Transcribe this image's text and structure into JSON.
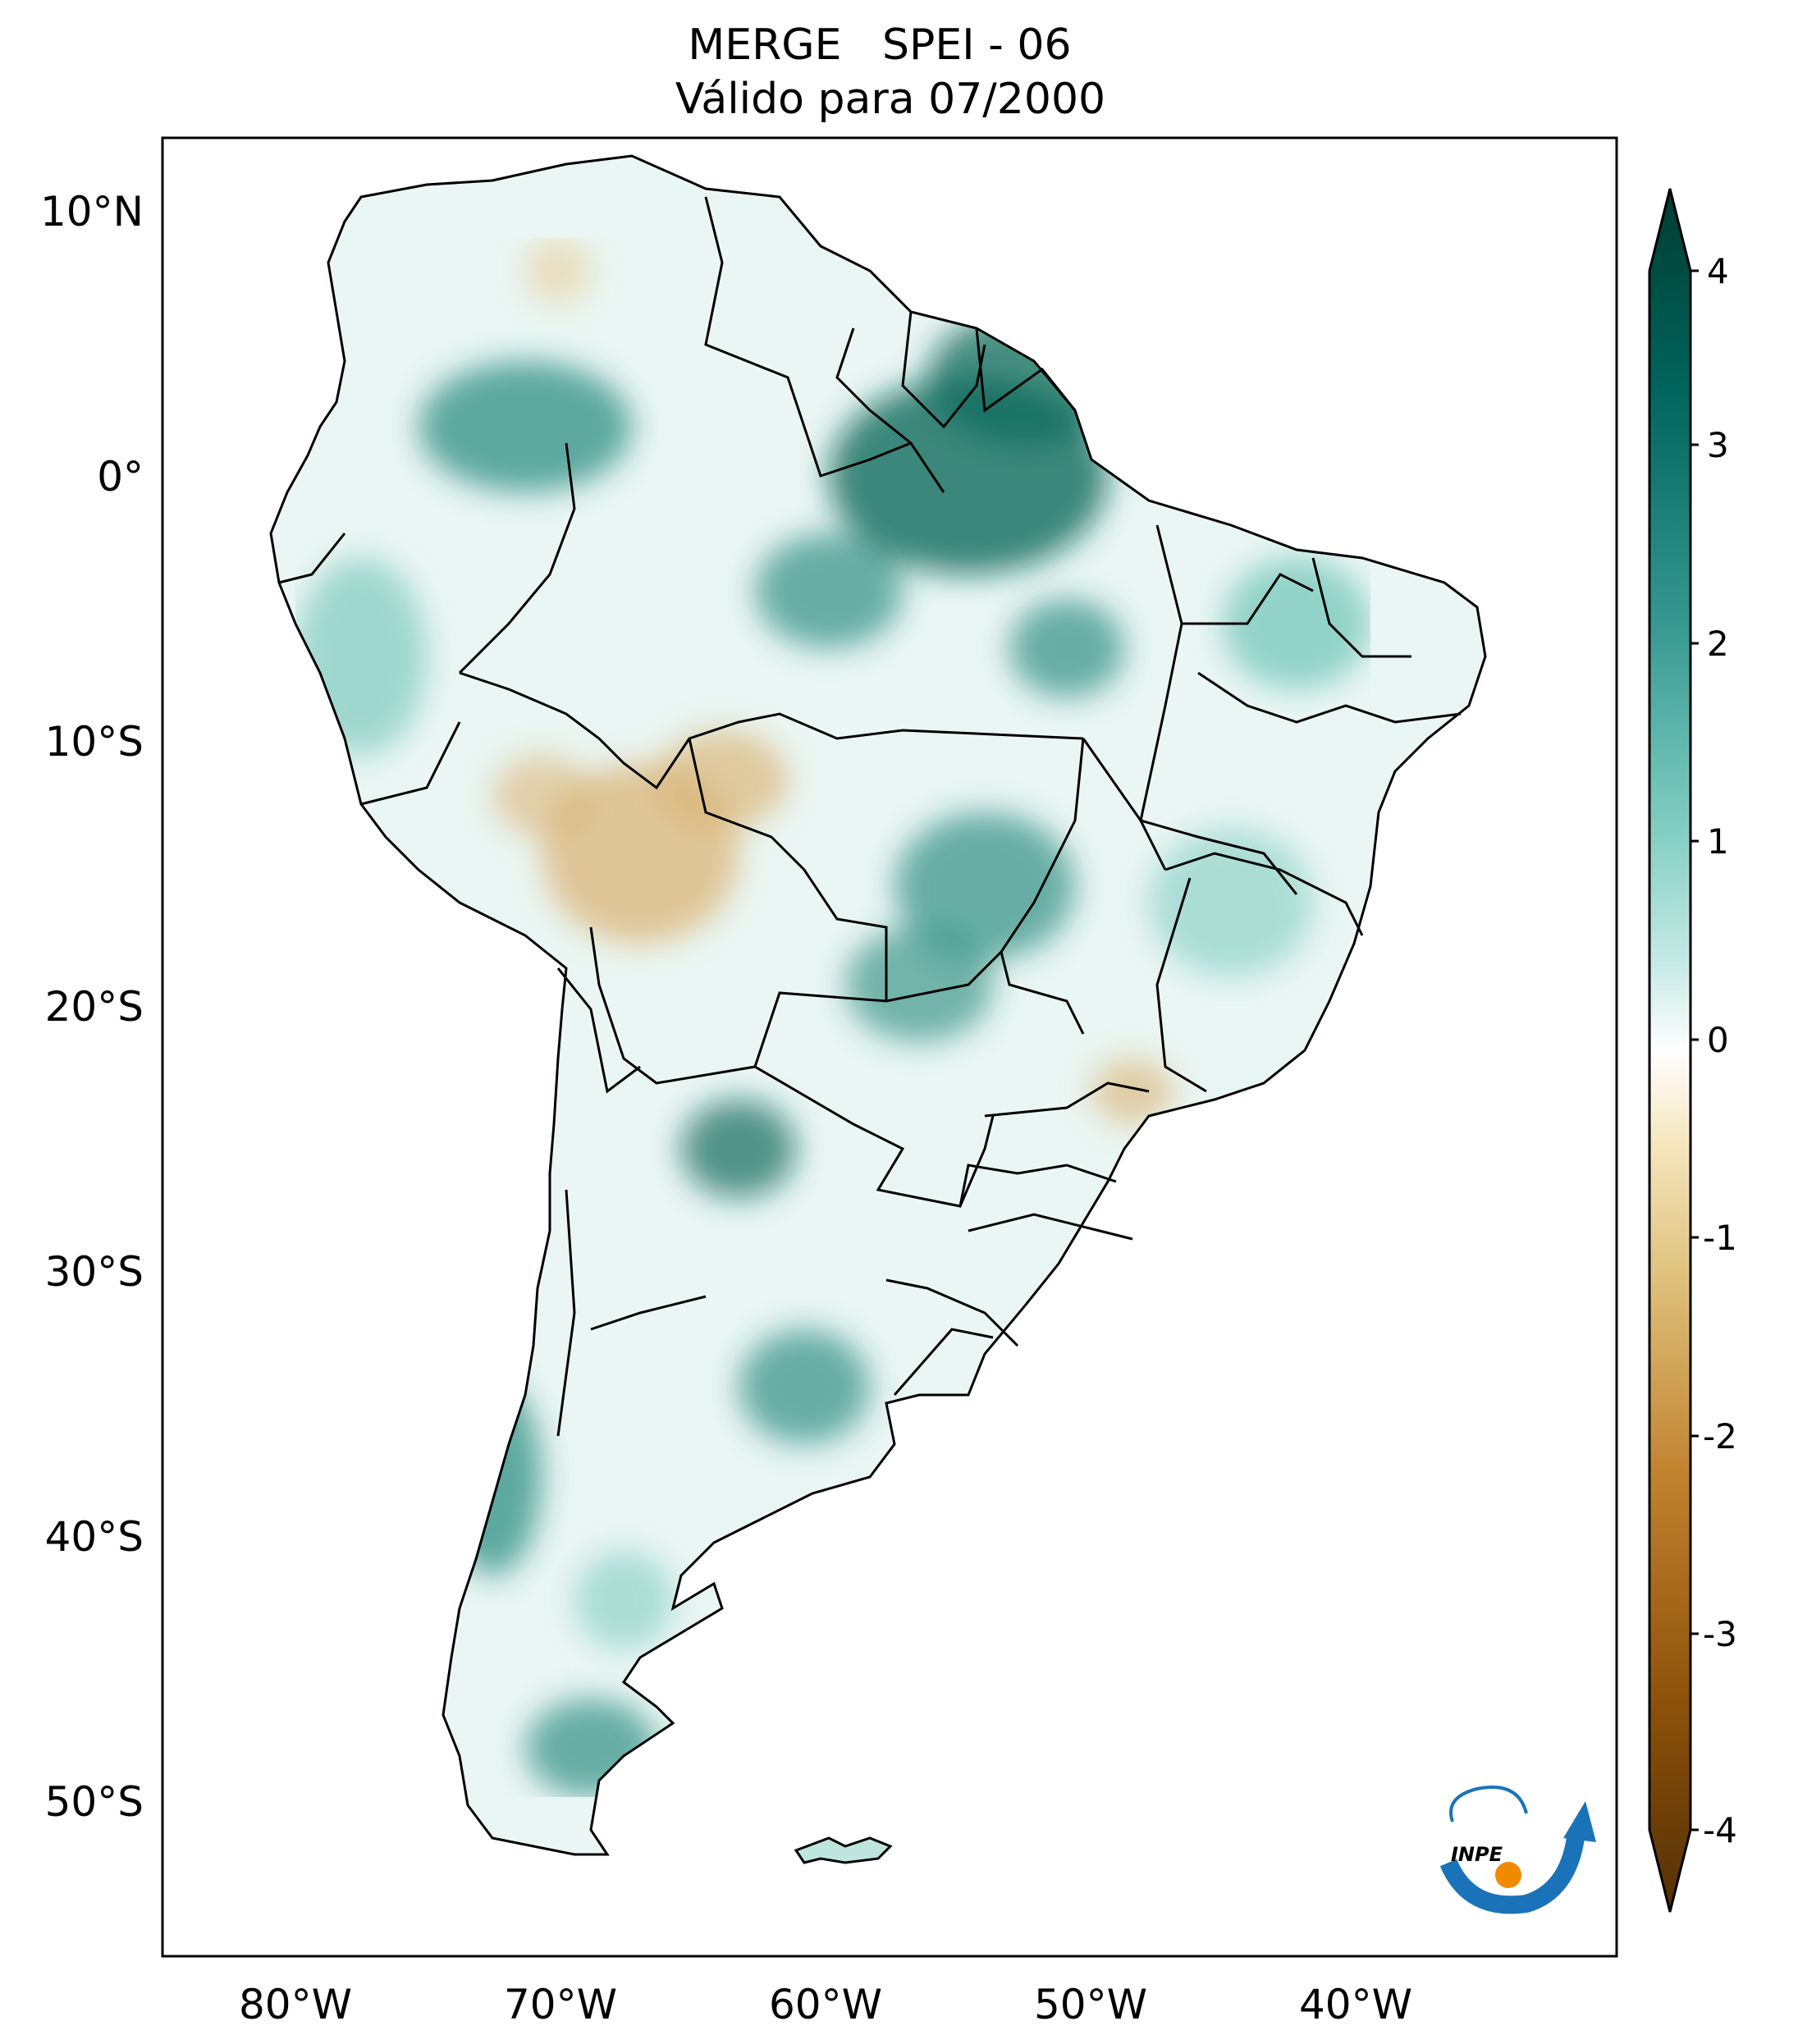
{
  "title": {
    "line1": "MERGE   SPEI - 06",
    "line2": "Válido para 07/2000"
  },
  "map": {
    "lat_labels": [
      "10°N",
      "0°",
      "10°S",
      "20°S",
      "30°S",
      "40°S",
      "50°S"
    ],
    "lon_labels": [
      "80°W",
      "70°W",
      "60°W",
      "50°W",
      "40°W"
    ]
  },
  "colorbar": {
    "ticks": [
      "4",
      "3",
      "2",
      "1",
      "0",
      "-1",
      "-2",
      "-3",
      "-4"
    ],
    "range": [
      -4,
      4
    ],
    "colors": {
      "max": "#003c30",
      "high": "#35978f",
      "mid_high": "#c7eae5",
      "zero": "#ffffff",
      "mid_low": "#f6e8c3",
      "low": "#bf812d",
      "min": "#543005"
    }
  },
  "logo": {
    "text": "INPE"
  },
  "colors": {
    "outline": "#000000",
    "wet": "#2f8f83",
    "wet_strong": "#0d6b5c",
    "wet_light": "#bfe6de",
    "dry": "#d9b070"
  }
}
